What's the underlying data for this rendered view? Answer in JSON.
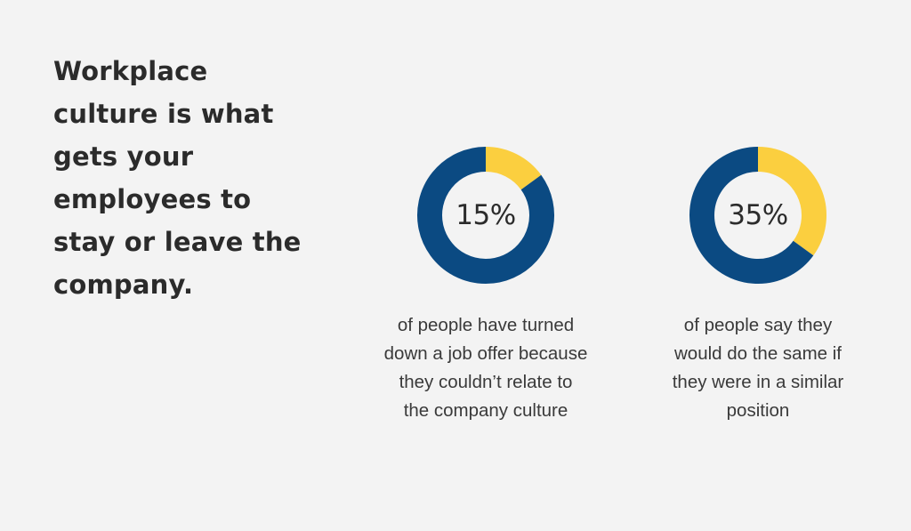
{
  "headline": {
    "lines": [
      "Workplace",
      "culture is what",
      "gets your",
      "employees to",
      "stay or leave the",
      "company."
    ]
  },
  "colors": {
    "background": "#f3f3f3",
    "primary": "#0b4a82",
    "accent": "#fbcf3f",
    "text": "#2b2b2b"
  },
  "chart_data": [
    {
      "type": "pie",
      "categories": [
        "share",
        "remainder"
      ],
      "values": [
        15,
        85
      ],
      "label": "15%",
      "caption_lines": [
        "of people have turned",
        "down a job offer because",
        "they couldn’t relate to",
        "the company culture"
      ]
    },
    {
      "type": "pie",
      "categories": [
        "share",
        "remainder"
      ],
      "values": [
        35,
        65
      ],
      "label": "35%",
      "caption_lines": [
        "of people say they",
        "would do the same if",
        "they were in a similar",
        "position"
      ]
    }
  ]
}
